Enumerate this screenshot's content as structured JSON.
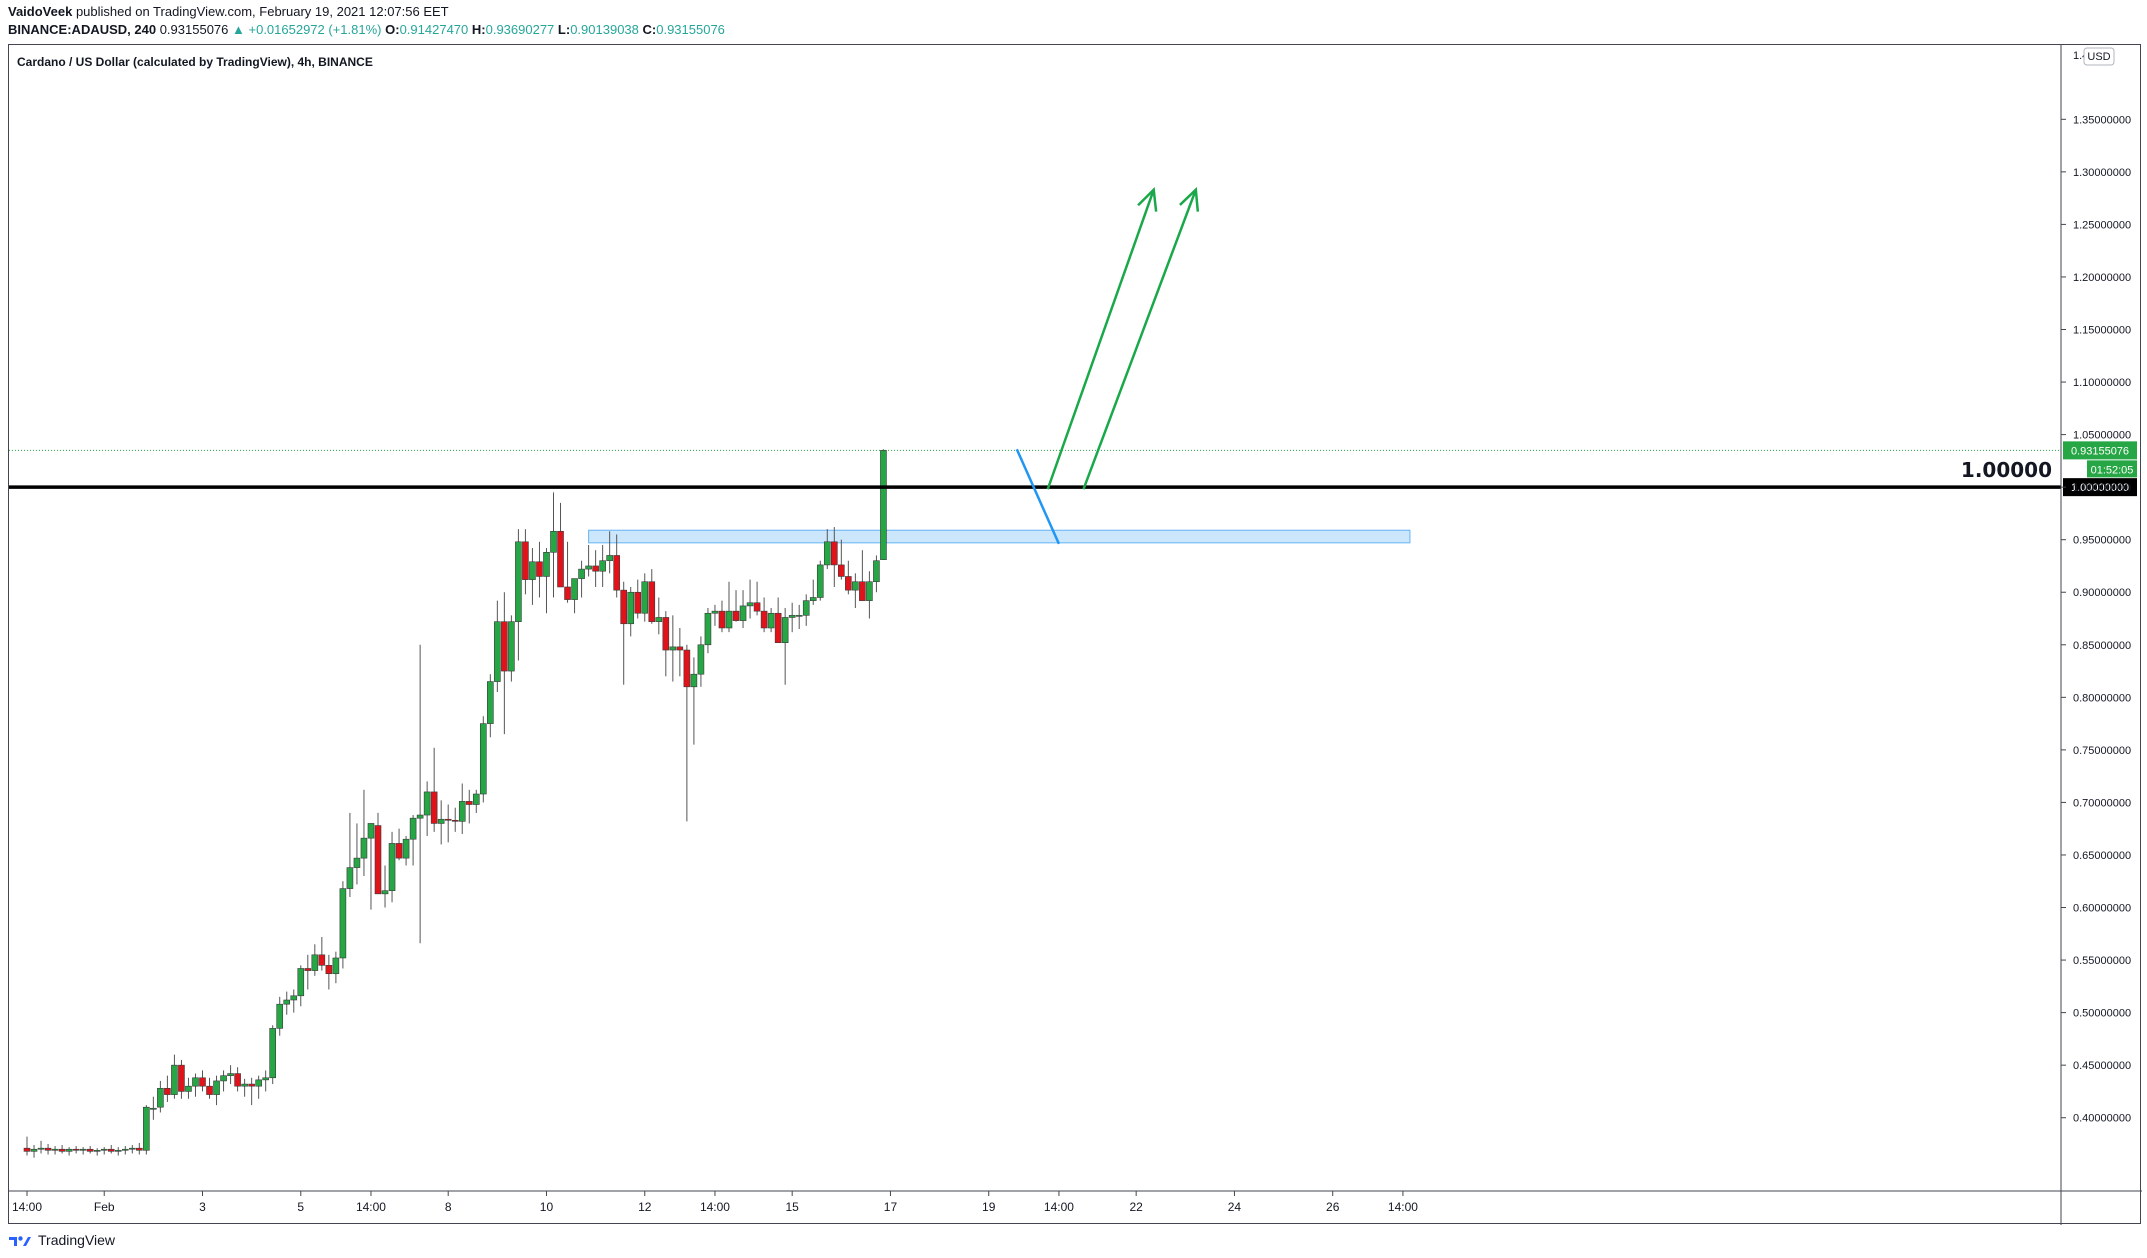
{
  "header": {
    "author": "VaidoVeek",
    "published": "published on TradingView.com, February 19, 2021 12:07:56 EET",
    "symbol": "BINANCE:ADAUSD, 240",
    "last": "0.93155076",
    "change": "▲ +0.01652972 (+1.81%)",
    "o_label": "O:",
    "o": "0.91427470",
    "h_label": "H:",
    "h": "0.93690277",
    "l_label": "L:",
    "l": "0.90139038",
    "c_label": "C:",
    "c": "0.93155076"
  },
  "footer": {
    "brand": "TradingView"
  },
  "colors": {
    "up": "#26a645",
    "down": "#e0131b",
    "zone": "#bbdefb",
    "blue_arrow": "#2196f3",
    "green_arrow": "#1aa84a"
  },
  "chart_data": {
    "type": "candlestick",
    "title": "Cardano / US Dollar (calculated by TradingView), 4h, BINANCE",
    "currency": "USD",
    "ylim": [
      0.355,
      1.415
    ],
    "y_ticks": [
      "0.40000000",
      "0.45000000",
      "0.50000000",
      "0.55000000",
      "0.60000000",
      "0.65000000",
      "0.70000000",
      "0.75000000",
      "0.80000000",
      "0.85000000",
      "0.90000000",
      "0.95000000",
      "1.00000000",
      "1.05000000",
      "1.10000000",
      "1.15000000",
      "1.20000000",
      "1.25000000",
      "1.30000000",
      "1.35000000"
    ],
    "y_tick_values": [
      0.4,
      0.45,
      0.5,
      0.55,
      0.6,
      0.65,
      0.7,
      0.75,
      0.8,
      0.85,
      0.9,
      0.95,
      1.0,
      1.05,
      1.1,
      1.15,
      1.2,
      1.25,
      1.3,
      1.35
    ],
    "top_partial_tick": "1.4",
    "x_ticks": [
      "14:00",
      "Feb",
      "3",
      "5",
      "14:00",
      "8",
      "10",
      "12",
      "14:00",
      "15",
      "17",
      "19",
      "14:00",
      "22",
      "24",
      "26",
      "14:00"
    ],
    "x_tick_index": [
      0,
      11,
      25,
      39,
      49,
      60,
      74,
      88,
      98,
      109,
      123,
      137,
      147,
      158,
      172,
      186,
      196
    ],
    "last_price_label": "0.93155076",
    "countdown_label": "01:52:05",
    "level_line": {
      "value": 1.0,
      "label": "1.00000",
      "axis_label": "1.00000000"
    },
    "resistance_zone": {
      "low": 0.947,
      "high": 0.959,
      "start_index": 80,
      "end_index": 197
    },
    "blue_arrow": [
      [
        141,
        1.036
      ],
      [
        147,
        0.946
      ]
    ],
    "green_arrows": [
      {
        "from": [
          145.4,
          0.998
        ],
        "to": [
          160.5,
          1.283
        ]
      },
      {
        "from": [
          150.5,
          0.998
        ],
        "to": [
          166.5,
          1.283
        ]
      }
    ],
    "candles": [
      [
        0.371,
        0.382,
        0.364,
        0.368
      ],
      [
        0.368,
        0.374,
        0.362,
        0.37
      ],
      [
        0.37,
        0.378,
        0.366,
        0.371
      ],
      [
        0.371,
        0.375,
        0.365,
        0.369
      ],
      [
        0.369,
        0.373,
        0.365,
        0.37
      ],
      [
        0.37,
        0.374,
        0.366,
        0.368
      ],
      [
        0.368,
        0.372,
        0.364,
        0.37
      ],
      [
        0.37,
        0.373,
        0.366,
        0.369
      ],
      [
        0.369,
        0.372,
        0.365,
        0.37
      ],
      [
        0.37,
        0.373,
        0.366,
        0.368
      ],
      [
        0.368,
        0.371,
        0.364,
        0.369
      ],
      [
        0.369,
        0.372,
        0.365,
        0.37
      ],
      [
        0.37,
        0.374,
        0.366,
        0.368
      ],
      [
        0.368,
        0.372,
        0.364,
        0.369
      ],
      [
        0.369,
        0.373,
        0.365,
        0.37
      ],
      [
        0.37,
        0.374,
        0.366,
        0.371
      ],
      [
        0.371,
        0.376,
        0.365,
        0.369
      ],
      [
        0.369,
        0.412,
        0.365,
        0.41
      ],
      [
        0.408,
        0.42,
        0.398,
        0.409
      ],
      [
        0.41,
        0.435,
        0.405,
        0.428
      ],
      [
        0.428,
        0.44,
        0.415,
        0.422
      ],
      [
        0.422,
        0.46,
        0.418,
        0.45
      ],
      [
        0.45,
        0.455,
        0.418,
        0.425
      ],
      [
        0.425,
        0.438,
        0.418,
        0.43
      ],
      [
        0.43,
        0.442,
        0.42,
        0.438
      ],
      [
        0.438,
        0.445,
        0.425,
        0.43
      ],
      [
        0.43,
        0.438,
        0.418,
        0.422
      ],
      [
        0.422,
        0.44,
        0.412,
        0.435
      ],
      [
        0.435,
        0.445,
        0.425,
        0.44
      ],
      [
        0.44,
        0.45,
        0.432,
        0.442
      ],
      [
        0.442,
        0.448,
        0.425,
        0.43
      ],
      [
        0.43,
        0.437,
        0.42,
        0.432
      ],
      [
        0.432,
        0.438,
        0.412,
        0.43
      ],
      [
        0.43,
        0.44,
        0.418,
        0.436
      ],
      [
        0.436,
        0.445,
        0.425,
        0.438
      ],
      [
        0.438,
        0.488,
        0.432,
        0.485
      ],
      [
        0.485,
        0.515,
        0.478,
        0.508
      ],
      [
        0.508,
        0.52,
        0.498,
        0.512
      ],
      [
        0.512,
        0.522,
        0.5,
        0.516
      ],
      [
        0.516,
        0.545,
        0.506,
        0.542
      ],
      [
        0.542,
        0.555,
        0.522,
        0.54
      ],
      [
        0.54,
        0.565,
        0.535,
        0.555
      ],
      [
        0.555,
        0.572,
        0.54,
        0.545
      ],
      [
        0.545,
        0.555,
        0.522,
        0.537
      ],
      [
        0.537,
        0.558,
        0.528,
        0.552
      ],
      [
        0.552,
        0.625,
        0.542,
        0.618
      ],
      [
        0.618,
        0.69,
        0.61,
        0.638
      ],
      [
        0.638,
        0.68,
        0.622,
        0.647
      ],
      [
        0.647,
        0.712,
        0.63,
        0.666
      ],
      [
        0.666,
        0.675,
        0.598,
        0.68
      ],
      [
        0.678,
        0.69,
        0.615,
        0.613
      ],
      [
        0.613,
        0.64,
        0.6,
        0.616
      ],
      [
        0.616,
        0.672,
        0.605,
        0.661
      ],
      [
        0.661,
        0.675,
        0.645,
        0.647
      ],
      [
        0.647,
        0.668,
        0.64,
        0.665
      ],
      [
        0.665,
        0.688,
        0.64,
        0.685
      ],
      [
        0.685,
        0.85,
        0.566,
        0.688
      ],
      [
        0.688,
        0.72,
        0.668,
        0.71
      ],
      [
        0.71,
        0.752,
        0.672,
        0.68
      ],
      [
        0.68,
        0.702,
        0.66,
        0.684
      ],
      [
        0.684,
        0.698,
        0.662,
        0.683
      ],
      [
        0.683,
        0.695,
        0.672,
        0.682
      ],
      [
        0.682,
        0.718,
        0.67,
        0.701
      ],
      [
        0.701,
        0.712,
        0.68,
        0.698
      ],
      [
        0.698,
        0.712,
        0.69,
        0.708
      ],
      [
        0.708,
        0.782,
        0.7,
        0.775
      ],
      [
        0.775,
        0.822,
        0.762,
        0.815
      ],
      [
        0.815,
        0.892,
        0.805,
        0.872
      ],
      [
        0.872,
        0.9,
        0.765,
        0.825
      ],
      [
        0.825,
        0.878,
        0.815,
        0.872
      ],
      [
        0.872,
        0.96,
        0.835,
        0.948
      ],
      [
        0.948,
        0.96,
        0.898,
        0.912
      ],
      [
        0.912,
        0.942,
        0.888,
        0.929
      ],
      [
        0.929,
        0.948,
        0.895,
        0.915
      ],
      [
        0.915,
        0.942,
        0.88,
        0.938
      ],
      [
        0.938,
        0.995,
        0.895,
        0.958
      ],
      [
        0.958,
        0.985,
        0.915,
        0.905
      ],
      [
        0.905,
        0.948,
        0.89,
        0.893
      ],
      [
        0.893,
        0.912,
        0.88,
        0.913
      ],
      [
        0.913,
        0.93,
        0.895,
        0.922
      ],
      [
        0.922,
        0.945,
        0.915,
        0.925
      ],
      [
        0.925,
        0.94,
        0.905,
        0.92
      ],
      [
        0.92,
        0.945,
        0.905,
        0.93
      ],
      [
        0.93,
        0.958,
        0.918,
        0.935
      ],
      [
        0.935,
        0.955,
        0.895,
        0.902
      ],
      [
        0.902,
        0.91,
        0.812,
        0.87
      ],
      [
        0.87,
        0.905,
        0.858,
        0.9
      ],
      [
        0.9,
        0.912,
        0.875,
        0.88
      ],
      [
        0.88,
        0.918,
        0.872,
        0.91
      ],
      [
        0.91,
        0.922,
        0.87,
        0.872
      ],
      [
        0.872,
        0.895,
        0.86,
        0.876
      ],
      [
        0.876,
        0.882,
        0.82,
        0.845
      ],
      [
        0.845,
        0.878,
        0.815,
        0.848
      ],
      [
        0.848,
        0.866,
        0.82,
        0.845
      ],
      [
        0.845,
        0.85,
        0.682,
        0.81
      ],
      [
        0.81,
        0.838,
        0.755,
        0.822
      ],
      [
        0.822,
        0.858,
        0.81,
        0.85
      ],
      [
        0.85,
        0.885,
        0.842,
        0.88
      ],
      [
        0.88,
        0.888,
        0.868,
        0.882
      ],
      [
        0.882,
        0.892,
        0.862,
        0.866
      ],
      [
        0.866,
        0.91,
        0.862,
        0.882
      ],
      [
        0.882,
        0.902,
        0.872,
        0.873
      ],
      [
        0.873,
        0.902,
        0.866,
        0.887
      ],
      [
        0.887,
        0.912,
        0.875,
        0.89
      ],
      [
        0.89,
        0.91,
        0.878,
        0.882
      ],
      [
        0.882,
        0.895,
        0.862,
        0.866
      ],
      [
        0.866,
        0.885,
        0.862,
        0.88
      ],
      [
        0.88,
        0.895,
        0.852,
        0.852
      ],
      [
        0.852,
        0.885,
        0.812,
        0.876
      ],
      [
        0.876,
        0.89,
        0.862,
        0.878
      ],
      [
        0.878,
        0.888,
        0.865,
        0.878
      ],
      [
        0.878,
        0.898,
        0.868,
        0.892
      ],
      [
        0.892,
        0.912,
        0.888,
        0.895
      ],
      [
        0.895,
        0.93,
        0.892,
        0.926
      ],
      [
        0.926,
        0.96,
        0.922,
        0.948
      ],
      [
        0.948,
        0.962,
        0.905,
        0.926
      ],
      [
        0.926,
        0.95,
        0.912,
        0.915
      ],
      [
        0.915,
        0.93,
        0.898,
        0.902
      ],
      [
        0.902,
        0.918,
        0.885,
        0.91
      ],
      [
        0.91,
        0.94,
        0.895,
        0.892
      ],
      [
        0.892,
        0.92,
        0.875,
        0.91
      ],
      [
        0.91,
        0.935,
        0.9,
        0.93
      ],
      [
        0.931,
        1.036,
        0.931,
        1.035
      ]
    ]
  }
}
